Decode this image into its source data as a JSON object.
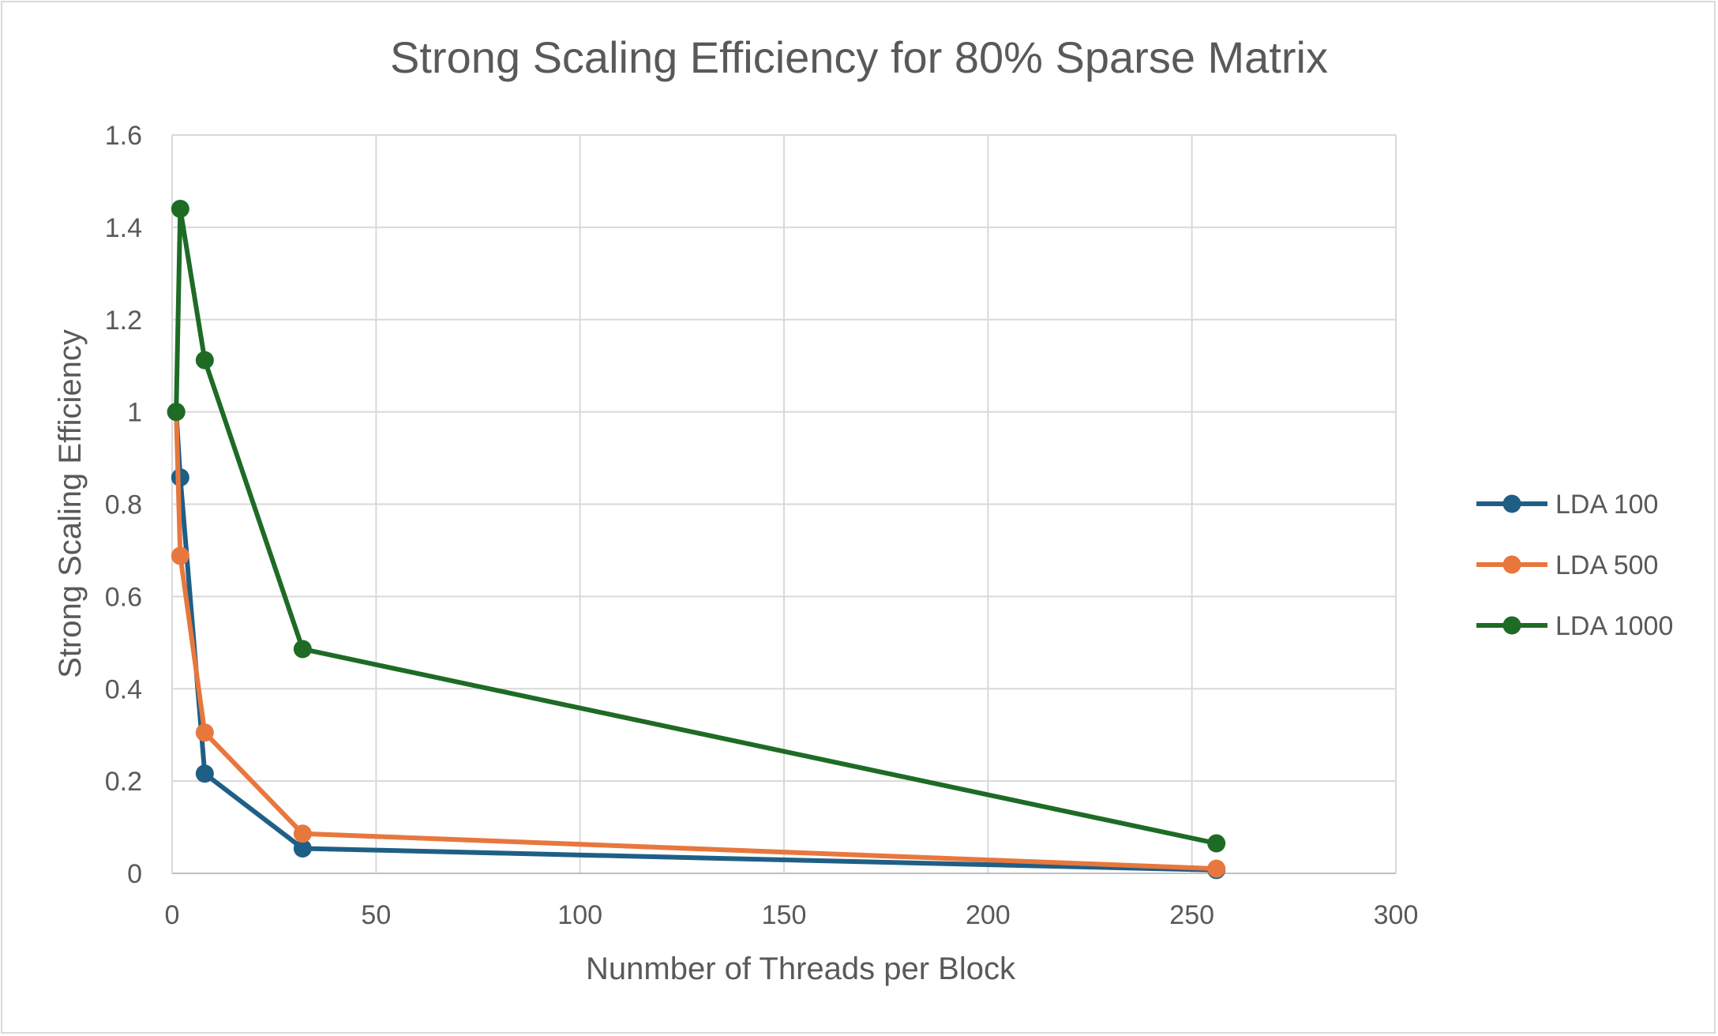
{
  "chart_data": {
    "type": "scatter",
    "title": "Strong Scaling Efficiency for 80% Sparse Matrix",
    "xlabel": "Nunmber of Threads per Block",
    "ylabel": "Strong Scaling Efficiency",
    "xlim": [
      0,
      300
    ],
    "ylim": [
      0,
      1.6
    ],
    "x_ticks": [
      0,
      50,
      100,
      150,
      200,
      250,
      300
    ],
    "y_ticks": [
      0,
      0.2,
      0.4,
      0.6,
      0.8,
      1,
      1.2,
      1.4,
      1.6
    ],
    "grid": true,
    "legend_position": "right",
    "series": [
      {
        "name": "LDA 100",
        "color": "#1f5f86",
        "x": [
          1,
          2,
          8,
          32,
          256
        ],
        "y": [
          1.0,
          0.858,
          0.216,
          0.054,
          0.007
        ]
      },
      {
        "name": "LDA 500",
        "color": "#e8773d",
        "x": [
          1,
          2,
          8,
          32,
          256
        ],
        "y": [
          1.0,
          0.688,
          0.305,
          0.086,
          0.01
        ]
      },
      {
        "name": "LDA 1000",
        "color": "#1e6b25",
        "x": [
          1,
          2,
          8,
          32,
          256
        ],
        "y": [
          1.0,
          1.44,
          1.112,
          0.486,
          0.065
        ]
      }
    ]
  }
}
